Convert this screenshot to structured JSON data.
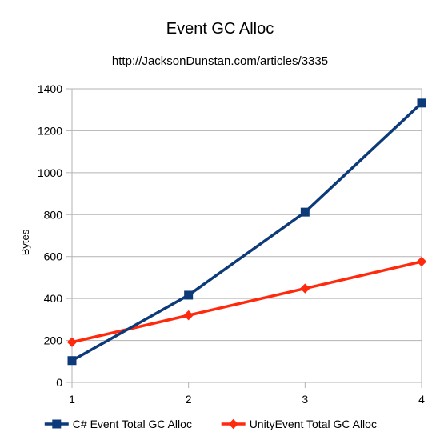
{
  "chart_data": {
    "type": "line",
    "title": "Event GC Alloc",
    "subtitle": "http://JacksonDunstan.com/articles/3335",
    "xlabel": "",
    "ylabel": "Bytes",
    "x": [
      1,
      2,
      3,
      4
    ],
    "x_tick_labels": [
      "1",
      "2",
      "3",
      "4"
    ],
    "ylim": [
      0,
      1400
    ],
    "y_ticks": [
      0,
      200,
      400,
      600,
      800,
      1000,
      1200,
      1400
    ],
    "grid": true,
    "legend_position": "bottom",
    "series": [
      {
        "name": "C# Event Total GC Alloc",
        "values": [
          104,
          416,
          812,
          1332
        ],
        "color": "#0d3a79",
        "marker": "square"
      },
      {
        "name": "UnityEvent Total GC Alloc",
        "values": [
          192,
          320,
          448,
          576
        ],
        "color": "#ff2a0e",
        "marker": "diamond"
      }
    ]
  }
}
